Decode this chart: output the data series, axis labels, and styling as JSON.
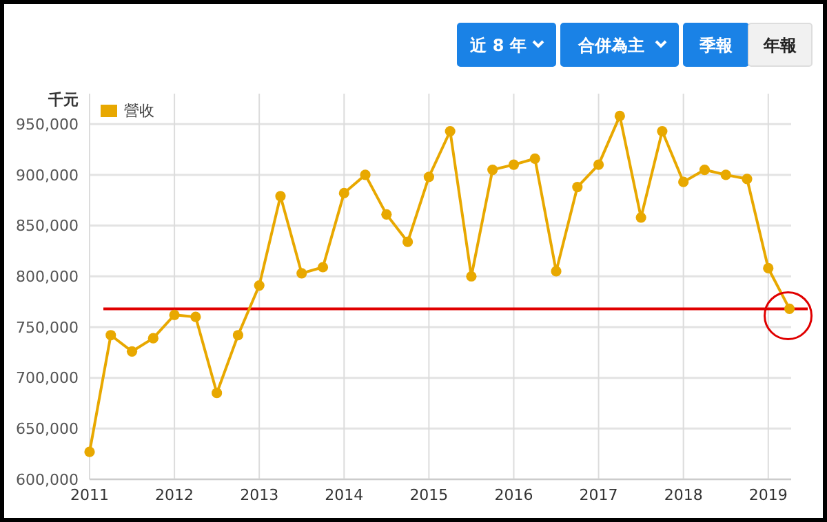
{
  "chart_data": {
    "type": "line",
    "ylabel": "千元",
    "x": [
      2011,
      2011.25,
      2011.5,
      2011.75,
      2012,
      2012.25,
      2012.5,
      2012.75,
      2013,
      2013.25,
      2013.5,
      2013.75,
      2014,
      2014.25,
      2014.5,
      2014.75,
      2015,
      2015.25,
      2015.5,
      2015.75,
      2016,
      2016.25,
      2016.5,
      2016.75,
      2017,
      2017.25,
      2017.5,
      2017.75,
      2018,
      2018.25,
      2018.5,
      2018.75,
      2019,
      2019.25
    ],
    "series": [
      {
        "name": "營收",
        "color": "#e8a800",
        "values": [
          627000,
          742000,
          726000,
          739000,
          762000,
          760000,
          685000,
          742000,
          791000,
          879000,
          803000,
          809000,
          882000,
          900000,
          861000,
          834000,
          898000,
          943000,
          800000,
          905000,
          910000,
          916000,
          805000,
          888000,
          910000,
          958000,
          858000,
          943000,
          893000,
          905000,
          900000,
          896000,
          808000,
          768000
        ]
      }
    ],
    "xlim": [
      2011,
      2019.27
    ],
    "xticks": [
      2011,
      2012,
      2013,
      2014,
      2015,
      2016,
      2017,
      2018,
      2019
    ],
    "ylim": [
      600000,
      980000
    ],
    "yticks": [
      {
        "value": 600000,
        "label": "600,000"
      },
      {
        "value": 650000,
        "label": "650,000"
      },
      {
        "value": 700000,
        "label": "700,000"
      },
      {
        "value": 750000,
        "label": "750,000"
      },
      {
        "value": 800000,
        "label": "800,000"
      },
      {
        "value": 850000,
        "label": "850,000"
      },
      {
        "value": 900000,
        "label": "900,000"
      },
      {
        "value": 950000,
        "label": "950,000"
      }
    ],
    "ref_lines": [
      {
        "axis": "y",
        "value": 768000,
        "color": "#e00000"
      }
    ],
    "annotations": [
      "近 8 年",
      "合併為主",
      "季報",
      "年報"
    ],
    "grid": true,
    "legend": "top left",
    "marker": "circle",
    "line_style": "solid"
  }
}
